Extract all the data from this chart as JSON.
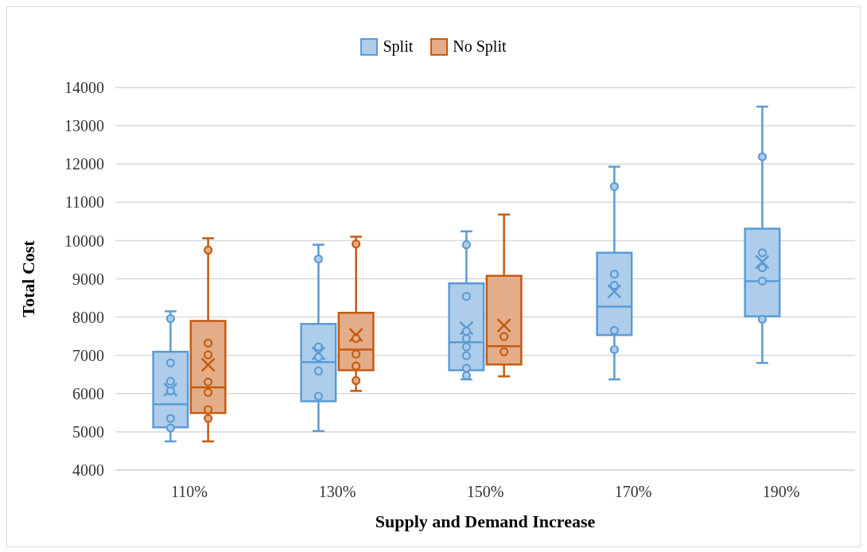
{
  "chart_data": {
    "type": "box",
    "xlabel": "Supply and Demand Increase",
    "ylabel": "Total Cost",
    "categories": [
      "110%",
      "130%",
      "150%",
      "170%",
      "190%"
    ],
    "ylim": [
      4000,
      14000
    ],
    "yticks": [
      4000,
      5000,
      6000,
      7000,
      8000,
      9000,
      10000,
      11000,
      12000,
      13000,
      14000
    ],
    "grid": "y",
    "legend": "top",
    "series": [
      {
        "name": "Split",
        "color": "#5b9bd5",
        "boxes": [
          {
            "low": 4750,
            "q1": 5120,
            "median": 5720,
            "q3": 7090,
            "high": 8150,
            "mean": 6100
          },
          {
            "low": 5020,
            "q1": 5800,
            "median": 6820,
            "q3": 7820,
            "high": 9890,
            "mean": 7050
          },
          {
            "low": 6370,
            "q1": 6610,
            "median": 7340,
            "q3": 8880,
            "high": 10240,
            "mean": 7710
          },
          {
            "low": 6370,
            "q1": 7530,
            "median": 8270,
            "q3": 9680,
            "high": 11930,
            "mean": 8670
          },
          {
            "low": 6800,
            "q1": 8020,
            "median": 8940,
            "q3": 10310,
            "high": 13500,
            "mean": 9440
          }
        ]
      },
      {
        "name": "No Split",
        "color": "#c55a11",
        "boxes": [
          {
            "low": 4750,
            "q1": 5490,
            "median": 6160,
            "q3": 7900,
            "high": 10060,
            "mean": 6750
          },
          {
            "low": 6070,
            "q1": 6610,
            "median": 7150,
            "q3": 8110,
            "high": 10100,
            "mean": 7530
          },
          {
            "low": 6450,
            "q1": 6760,
            "median": 7240,
            "q3": 9080,
            "high": 10680,
            "mean": 7780
          },
          null,
          null
        ]
      },
      {
        "type": "scatter",
        "color": "#5b9bd5",
        "marker": "circle",
        "x": [
          "110%",
          "110%",
          "110%",
          "110%",
          "110%",
          "110%",
          "130%",
          "130%",
          "130%",
          "130%",
          "130%",
          "150%",
          "150%",
          "150%",
          "150%",
          "150%",
          "150%",
          "150%",
          "150%",
          "170%",
          "170%",
          "170%",
          "170%",
          "170%",
          "190%",
          "190%",
          "190%",
          "190%",
          "190%"
        ],
        "values": [
          7960,
          6800,
          6320,
          6070,
          5350,
          5100,
          9520,
          7220,
          6950,
          6590,
          5930,
          9890,
          8540,
          7630,
          7440,
          7220,
          6990,
          6660,
          6470,
          11410,
          9120,
          8830,
          7650,
          7150,
          12190,
          9680,
          9290,
          8940,
          7940
        ]
      },
      {
        "type": "scatter",
        "color": "#c55a11",
        "marker": "circle",
        "x": [
          "110%",
          "110%",
          "110%",
          "110%",
          "110%",
          "110%",
          "110%",
          "130%",
          "130%",
          "130%",
          "130%",
          "130%",
          "150%",
          "150%"
        ],
        "values": [
          9750,
          7320,
          7010,
          6300,
          6030,
          5580,
          5350,
          9910,
          7440,
          7030,
          6720,
          6340,
          7490,
          7090
        ]
      }
    ]
  }
}
